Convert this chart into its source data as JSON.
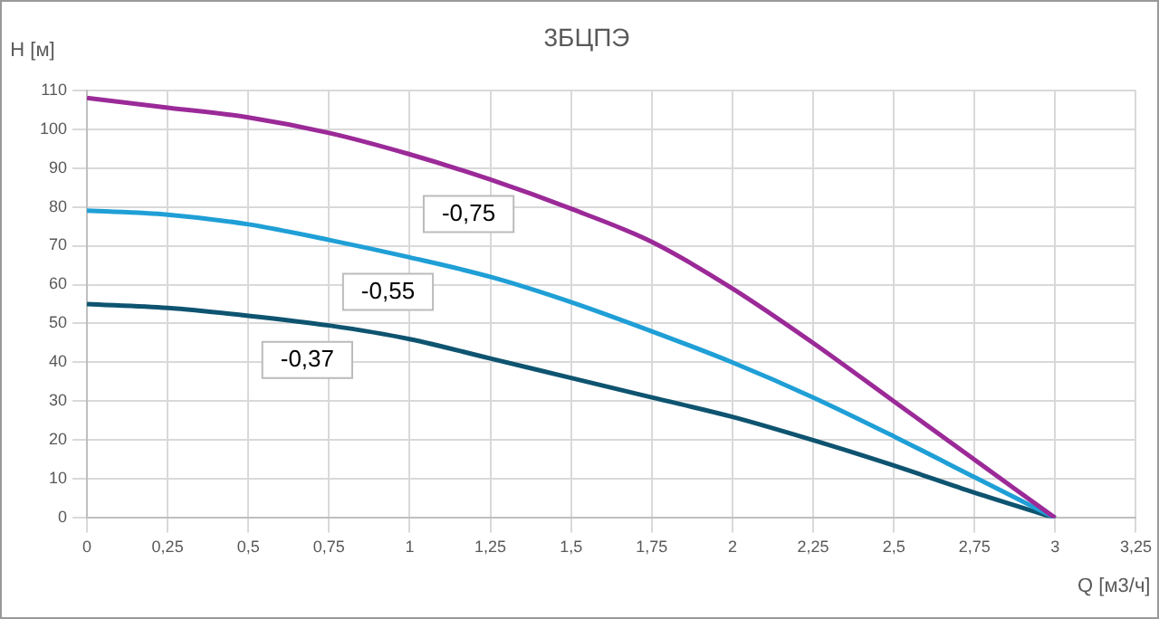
{
  "chart_data": {
    "type": "line",
    "title": "3БЦПЭ",
    "xlabel": "Q [м3/ч]",
    "ylabel": "H [м]",
    "x": [
      0,
      0.25,
      0.5,
      0.75,
      1,
      1.25,
      1.5,
      1.75,
      2,
      2.25,
      2.5,
      2.75,
      3
    ],
    "series": [
      {
        "name": "-0,75",
        "color": "#9b2a98",
        "values": [
          108,
          105.5,
          103,
          99,
          93.5,
          87,
          79.5,
          71,
          59,
          45,
          30,
          15,
          0
        ]
      },
      {
        "name": "-0,55",
        "color": "#1f9fd6",
        "values": [
          79,
          78,
          75.5,
          71.5,
          67,
          62,
          55.5,
          48,
          40,
          31,
          21,
          10.5,
          0
        ]
      },
      {
        "name": "-0,37",
        "color": "#0e5470",
        "values": [
          55,
          54,
          52,
          49.5,
          46,
          41,
          36,
          31,
          26,
          20,
          13.5,
          6.5,
          0
        ]
      }
    ],
    "xlim": [
      0,
      3.25
    ],
    "xticks": [
      {
        "value": 0,
        "label": "0"
      },
      {
        "value": 0.25,
        "label": "0,25"
      },
      {
        "value": 0.5,
        "label": "0,5"
      },
      {
        "value": 0.75,
        "label": "0,75"
      },
      {
        "value": 1,
        "label": "1"
      },
      {
        "value": 1.25,
        "label": "1,25"
      },
      {
        "value": 1.5,
        "label": "1,5"
      },
      {
        "value": 1.75,
        "label": "1,75"
      },
      {
        "value": 2,
        "label": "2"
      },
      {
        "value": 2.25,
        "label": "2,25"
      },
      {
        "value": 2.5,
        "label": "2,5"
      },
      {
        "value": 2.75,
        "label": "2,75"
      },
      {
        "value": 3,
        "label": "3"
      },
      {
        "value": 3.25,
        "label": "3,25"
      }
    ],
    "ylim": [
      0,
      110
    ],
    "yticks": [
      0,
      10,
      20,
      30,
      40,
      50,
      60,
      70,
      80,
      90,
      100,
      110
    ],
    "grid": true,
    "legend": false,
    "marker": "none",
    "line_style": "solid"
  }
}
